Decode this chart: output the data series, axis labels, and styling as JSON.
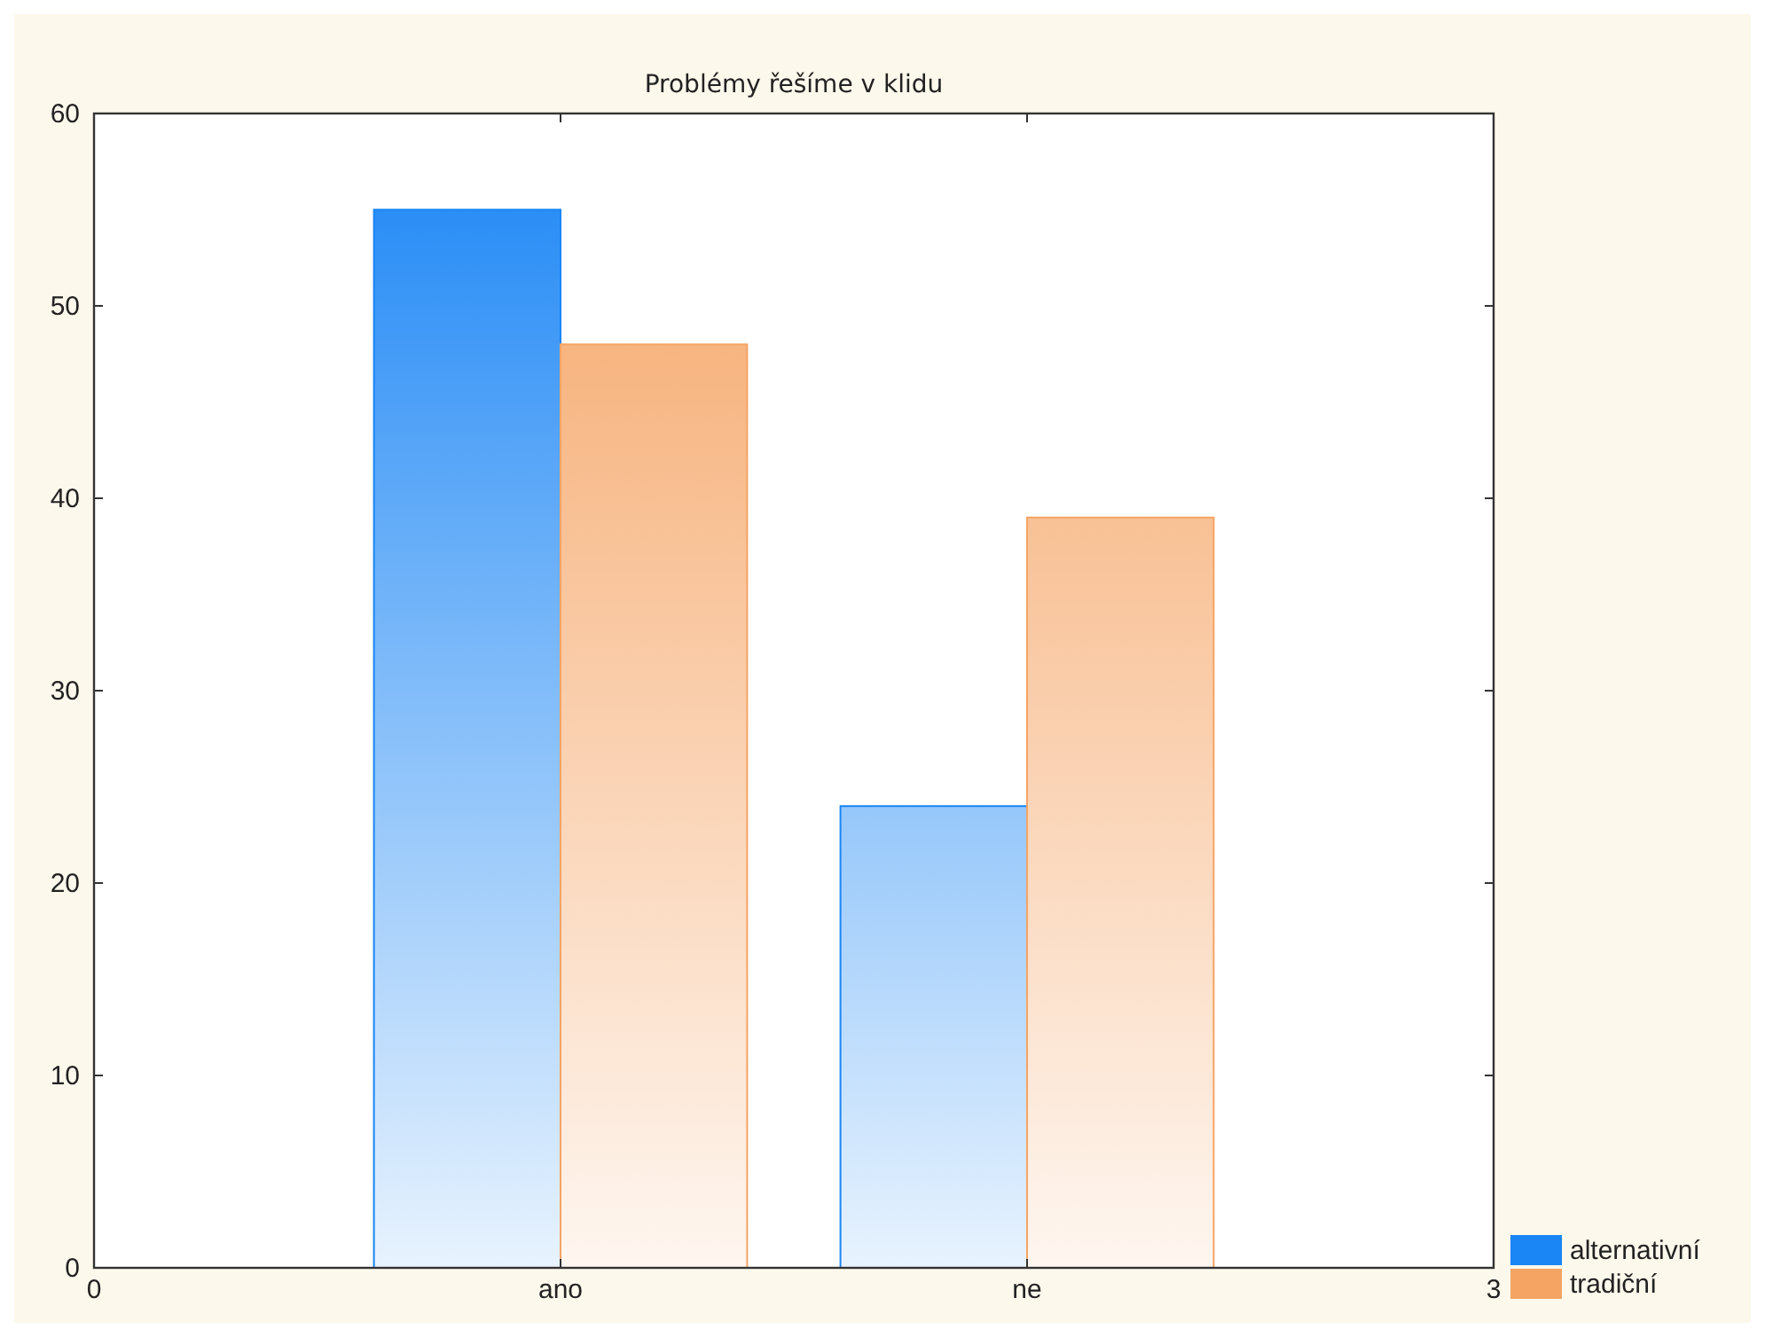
{
  "chart_data": {
    "type": "bar",
    "title": "Problémy řešíme v klidu",
    "x": [
      1,
      2
    ],
    "xlim": [
      0,
      3
    ],
    "xticks": [
      0,
      {
        "value": 1,
        "label": "ano"
      },
      {
        "value": 2,
        "label": "ne"
      },
      3
    ],
    "ylim": [
      0,
      60
    ],
    "yticks": [
      0,
      10,
      20,
      30,
      40,
      50,
      60
    ],
    "series": [
      {
        "name": "alternativní",
        "color": "#1a85f5",
        "values": [
          55,
          24
        ]
      },
      {
        "name": "tradiční",
        "color": "#f5a464",
        "values": [
          48,
          39
        ]
      }
    ],
    "legend": "bottom right",
    "grid": false
  }
}
